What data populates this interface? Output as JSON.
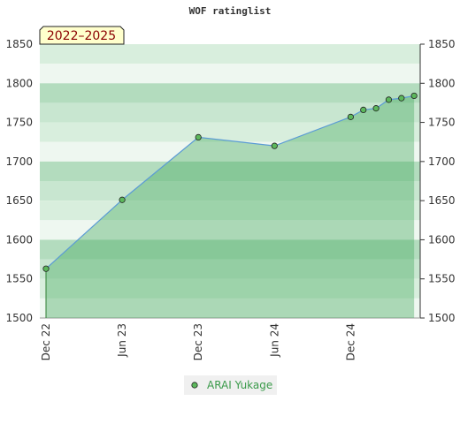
{
  "chart_data": {
    "type": "line",
    "title": "WOF ratinglist",
    "badge": "2022–2025",
    "x": [
      "2022-12",
      "2023-06",
      "2023-12",
      "2024-06",
      "2024-12",
      "2025-01",
      "2025-02",
      "2025-03",
      "2025-04",
      "2025-05"
    ],
    "xticks": [
      {
        "value": "2022-12",
        "label": "Dec 22"
      },
      {
        "value": "2023-06",
        "label": "Jun 23"
      },
      {
        "value": "2023-12",
        "label": "Dec 23"
      },
      {
        "value": "2024-06",
        "label": "Jun 24"
      },
      {
        "value": "2024-12",
        "label": "Dec 24"
      }
    ],
    "series": [
      {
        "name": "ARAI Yukage",
        "color": "#5cb85c",
        "line_color": "#5b9bd5",
        "values": [
          1563,
          1651,
          1731,
          1720,
          1757,
          1766,
          1768,
          1779,
          1781,
          1784
        ]
      }
    ],
    "ylim": [
      1500,
      1850
    ],
    "yticks": [
      1500,
      1550,
      1600,
      1650,
      1700,
      1750,
      1800,
      1850
    ],
    "grid": true
  }
}
